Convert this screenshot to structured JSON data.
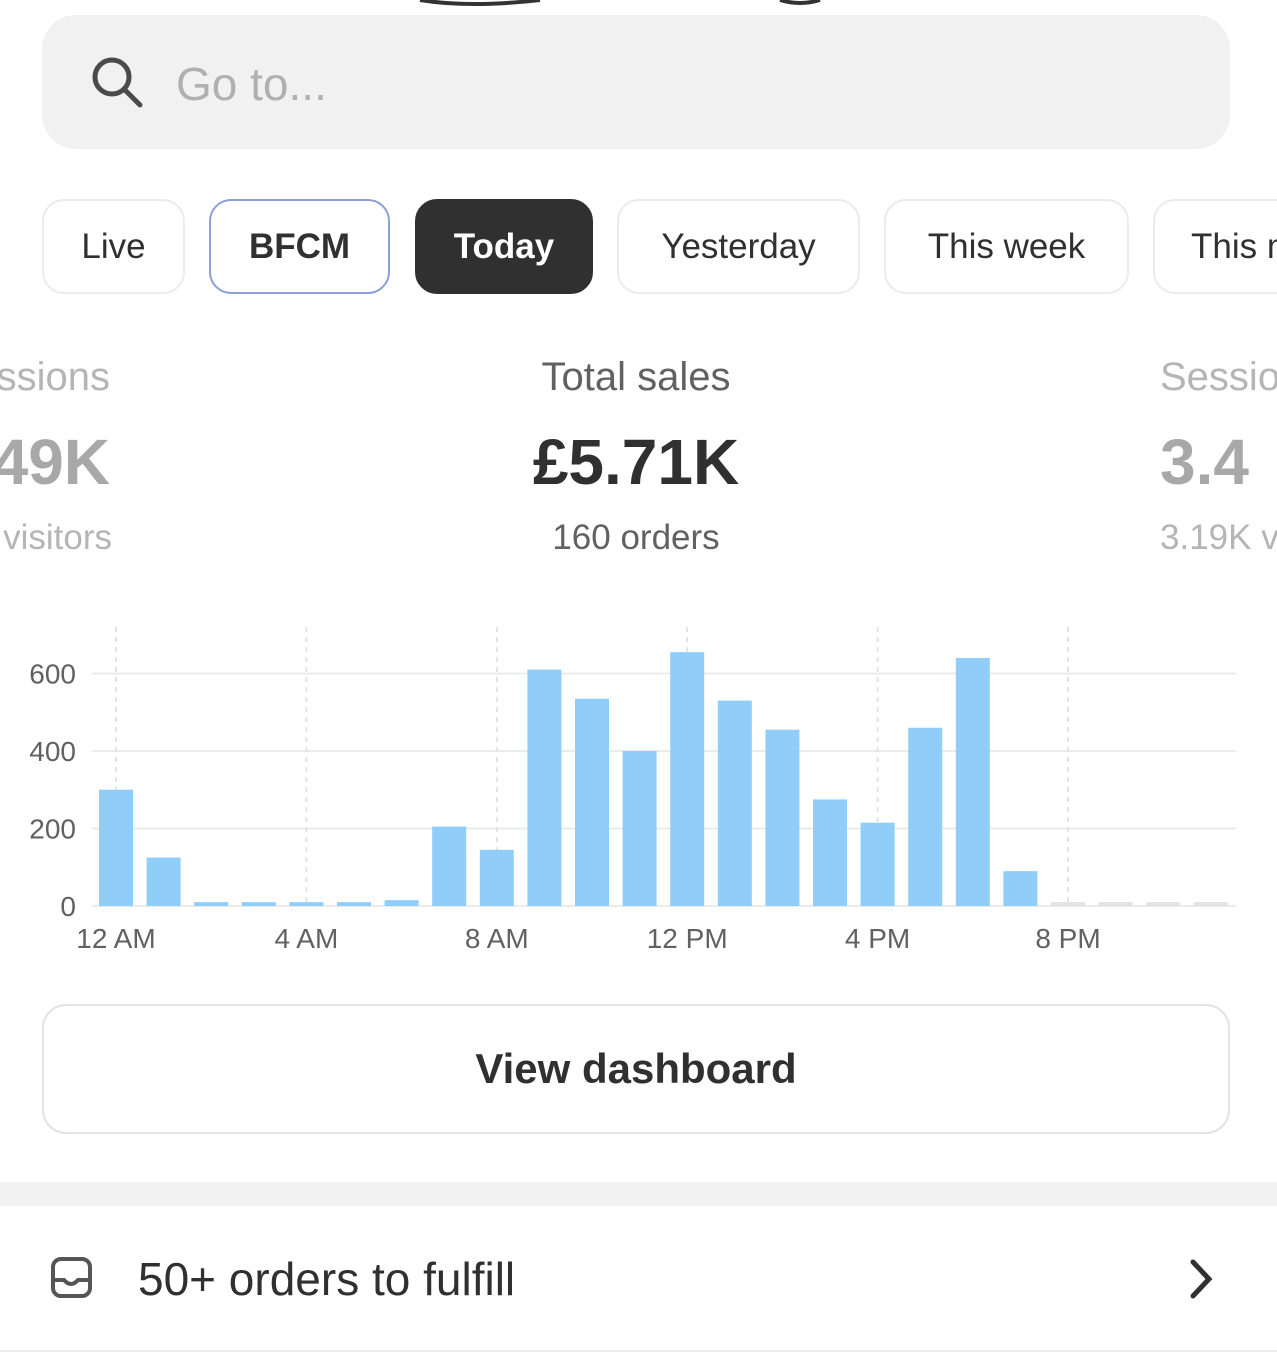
{
  "search": {
    "placeholder": "Go to..."
  },
  "tabs": [
    {
      "label": "Live",
      "selected": false
    },
    {
      "label": "BFCM",
      "selected": false
    },
    {
      "label": "Today",
      "selected": true
    },
    {
      "label": "Yesterday",
      "selected": false
    },
    {
      "label": "This week",
      "selected": false
    },
    {
      "label": "This m",
      "selected": false
    }
  ],
  "metrics": [
    {
      "label": "ssions",
      "value": "49K",
      "sub": "visitors"
    },
    {
      "label": "Total sales",
      "value": "£5.71K",
      "sub": "160 orders"
    },
    {
      "label": "Sessio",
      "value": "3.4",
      "sub": "3.19K v"
    }
  ],
  "chart_data": {
    "type": "bar",
    "categories": [
      "12 AM",
      null,
      null,
      null,
      "4 AM",
      null,
      null,
      null,
      "8 AM",
      null,
      null,
      null,
      "12 PM",
      null,
      null,
      null,
      "4 PM",
      null,
      null,
      null,
      "8 PM",
      null,
      null,
      null
    ],
    "values": [
      300,
      125,
      10,
      10,
      10,
      10,
      15,
      205,
      145,
      610,
      535,
      400,
      655,
      530,
      455,
      275,
      215,
      460,
      640,
      90,
      0,
      0,
      0,
      0
    ],
    "color": "#90cdf9",
    "empty_color": "#e3e3e3",
    "ylim": [
      0,
      720
    ],
    "yticks": [
      0,
      200,
      400,
      600
    ],
    "grid": true
  },
  "button": "View dashboard",
  "task": "50+ orders to fulfill"
}
